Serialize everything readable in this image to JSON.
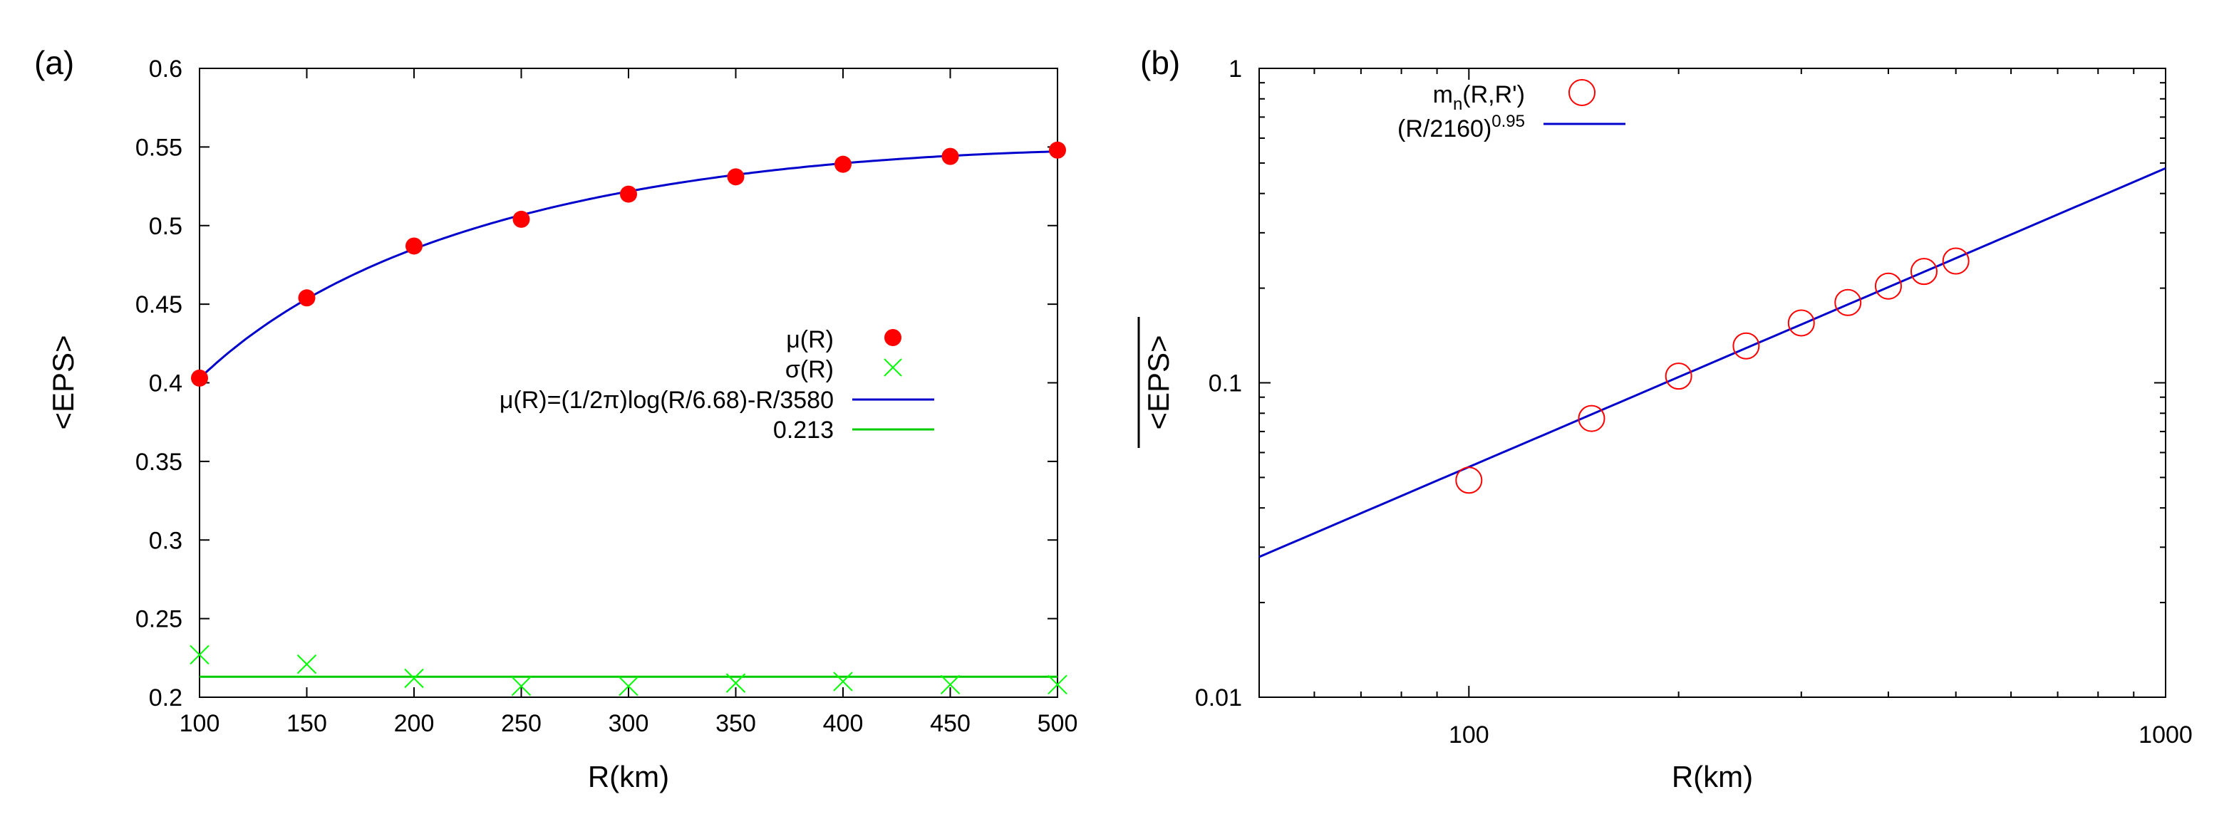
{
  "chart_data": [
    {
      "panel": "(a)",
      "type": "scatter",
      "xlabel": "R(km)",
      "ylabel": "<EPS>",
      "xlim": [
        100,
        500
      ],
      "ylim": [
        0.2,
        0.6
      ],
      "xticks": [
        "100",
        "150",
        "200",
        "250",
        "300",
        "350",
        "400",
        "450",
        "500"
      ],
      "yticks": [
        "0.2",
        "0.25",
        "0.3",
        "0.35",
        "0.4",
        "0.45",
        "0.5",
        "0.55",
        "0.6"
      ],
      "legend_position": "center-right",
      "series": [
        {
          "name": "μ(R)",
          "marker": "filled-circle",
          "color": "#ff0000",
          "x": [
            100,
            150,
            200,
            250,
            300,
            350,
            400,
            450,
            500
          ],
          "y": [
            0.403,
            0.454,
            0.487,
            0.504,
            0.52,
            0.531,
            0.539,
            0.544,
            0.548
          ]
        },
        {
          "name": "σ(R)",
          "marker": "cross",
          "color": "#00ff00",
          "x": [
            100,
            150,
            200,
            250,
            300,
            350,
            400,
            450,
            500
          ],
          "y": [
            0.227,
            0.221,
            0.212,
            0.207,
            0.207,
            0.209,
            0.21,
            0.208,
            0.208
          ]
        },
        {
          "name": "μ(R)=(1/2π)log(R/6.68)-R/3580",
          "line": "solid",
          "color": "#0000cc",
          "function": "(1/(2*pi))*ln(R/6.68) - R/3580"
        },
        {
          "name": "0.213",
          "line": "solid",
          "color": "#00cc00",
          "constant": 0.213
        }
      ]
    },
    {
      "panel": "(b)",
      "type": "scatter",
      "xscale": "log",
      "yscale": "log",
      "xlabel": "R(km)",
      "ylabel": "<EPS>",
      "ylabel_overline": true,
      "xlim": [
        50,
        1000
      ],
      "ylim": [
        0.01,
        1
      ],
      "xticks": [
        "100",
        "1000"
      ],
      "yticks": [
        "0.01",
        "0.1",
        "1"
      ],
      "legend_position": "top-left",
      "series": [
        {
          "name": "m",
          "name_sub": "n",
          "name_rest": "(R,R')",
          "marker": "open-circle",
          "color": "#ff0000",
          "x": [
            100,
            150,
            200,
            250,
            300,
            350,
            400,
            450,
            500
          ],
          "y": [
            0.049,
            0.077,
            0.105,
            0.131,
            0.155,
            0.18,
            0.203,
            0.226,
            0.244
          ]
        },
        {
          "name": "(R/2160)",
          "name_sup": "0.95",
          "line": "solid",
          "color": "#0000cc",
          "function": "(R/2160)^0.95"
        }
      ]
    }
  ]
}
